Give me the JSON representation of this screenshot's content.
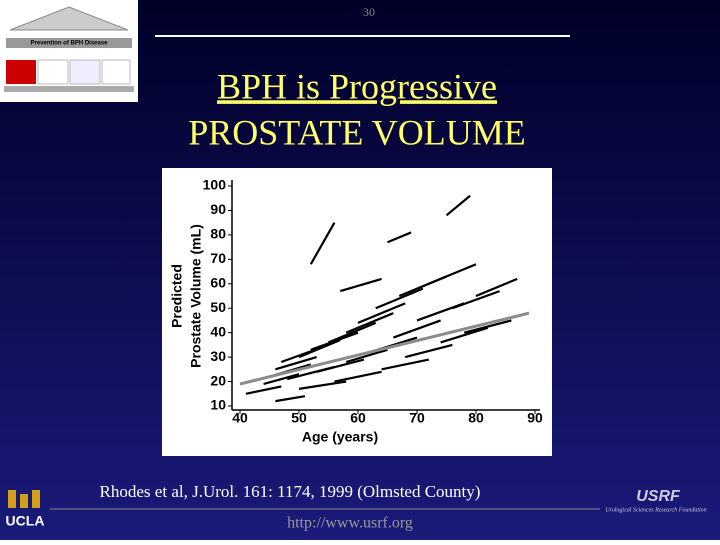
{
  "slide": {
    "page_number": "30",
    "logo_caption": "Prevention of BPH Disease",
    "title_line1": "BPH is  Progressive",
    "title_line2": "PROSTATE VOLUME",
    "citation": "Rhodes et al, J.Urol. 161: 1174, 1999 (Olmsted County)",
    "url": "http://www.usrf.org",
    "left_logo": "UCLA",
    "right_logo": "USRF",
    "right_logo_caption": "Urological Sciences Research Foundation"
  },
  "chart_data": {
    "type": "line",
    "xlabel": "Age (years)",
    "ylabel": [
      "Predicted",
      "Prostate Volume (mL)"
    ],
    "xlim": [
      40,
      90
    ],
    "xticks": [
      40,
      50,
      60,
      70,
      80,
      90
    ],
    "ylim": [
      10,
      100
    ],
    "yticks": [
      10,
      20,
      30,
      40,
      50,
      60,
      70,
      80,
      90,
      100
    ],
    "series": [
      {
        "color": "#000000",
        "x": [
          44,
          50
        ],
        "values": [
          19,
          23
        ]
      },
      {
        "color": "#000000",
        "x": [
          45,
          52
        ],
        "values": [
          22,
          27
        ]
      },
      {
        "color": "#000000",
        "x": [
          46,
          53
        ],
        "values": [
          25,
          30
        ]
      },
      {
        "color": "#000000",
        "x": [
          47,
          55
        ],
        "values": [
          28,
          35
        ]
      },
      {
        "color": "#000000",
        "x": [
          48,
          56
        ],
        "values": [
          21,
          26
        ]
      },
      {
        "color": "#000000",
        "x": [
          50,
          57
        ],
        "values": [
          30,
          37
        ]
      },
      {
        "color": "#000000",
        "x": [
          50,
          58
        ],
        "values": [
          17,
          20
        ]
      },
      {
        "color": "#000000",
        "x": [
          52,
          60
        ],
        "values": [
          33,
          40
        ]
      },
      {
        "color": "#000000",
        "x": [
          53,
          61
        ],
        "values": [
          24,
          29
        ]
      },
      {
        "color": "#000000",
        "x": [
          55,
          63
        ],
        "values": [
          36,
          44
        ]
      },
      {
        "color": "#000000",
        "x": [
          56,
          64
        ],
        "values": [
          20,
          24
        ]
      },
      {
        "color": "#000000",
        "x": [
          58,
          66
        ],
        "values": [
          40,
          48
        ]
      },
      {
        "color": "#000000",
        "x": [
          58,
          65
        ],
        "values": [
          28,
          33
        ]
      },
      {
        "color": "#000000",
        "x": [
          60,
          68
        ],
        "values": [
          44,
          52
        ]
      },
      {
        "color": "#000000",
        "x": [
          62,
          70
        ],
        "values": [
          32,
          38
        ]
      },
      {
        "color": "#000000",
        "x": [
          63,
          71
        ],
        "values": [
          50,
          58
        ]
      },
      {
        "color": "#000000",
        "x": [
          64,
          72
        ],
        "values": [
          25,
          29
        ]
      },
      {
        "color": "#000000",
        "x": [
          66,
          74
        ],
        "values": [
          38,
          45
        ]
      },
      {
        "color": "#000000",
        "x": [
          67,
          75
        ],
        "values": [
          55,
          63
        ]
      },
      {
        "color": "#000000",
        "x": [
          68,
          76
        ],
        "values": [
          30,
          35
        ]
      },
      {
        "color": "#000000",
        "x": [
          70,
          78
        ],
        "values": [
          45,
          52
        ]
      },
      {
        "color": "#000000",
        "x": [
          72,
          80
        ],
        "values": [
          60,
          68
        ]
      },
      {
        "color": "#000000",
        "x": [
          74,
          82
        ],
        "values": [
          36,
          42
        ]
      },
      {
        "color": "#000000",
        "x": [
          76,
          84
        ],
        "values": [
          50,
          57
        ]
      },
      {
        "color": "#000000",
        "x": [
          78,
          86
        ],
        "values": [
          40,
          45
        ]
      },
      {
        "color": "#000000",
        "x": [
          80,
          87
        ],
        "values": [
          55,
          62
        ]
      },
      {
        "color": "#000000",
        "x": [
          46,
          51
        ],
        "values": [
          12,
          14
        ]
      },
      {
        "color": "#000000",
        "x": [
          41,
          47
        ],
        "values": [
          15,
          18
        ]
      },
      {
        "color": "#000000",
        "x": [
          52,
          56
        ],
        "values": [
          68,
          85
        ]
      },
      {
        "color": "#000000",
        "x": [
          75,
          79
        ],
        "values": [
          88,
          96
        ]
      },
      {
        "color": "#000000",
        "x": [
          65,
          69
        ],
        "values": [
          77,
          81
        ]
      },
      {
        "color": "#000000",
        "x": [
          57,
          64
        ],
        "values": [
          57,
          62
        ]
      },
      {
        "color": "#8c8c8c",
        "x": [
          40,
          89
        ],
        "values": [
          19,
          48
        ]
      }
    ]
  }
}
